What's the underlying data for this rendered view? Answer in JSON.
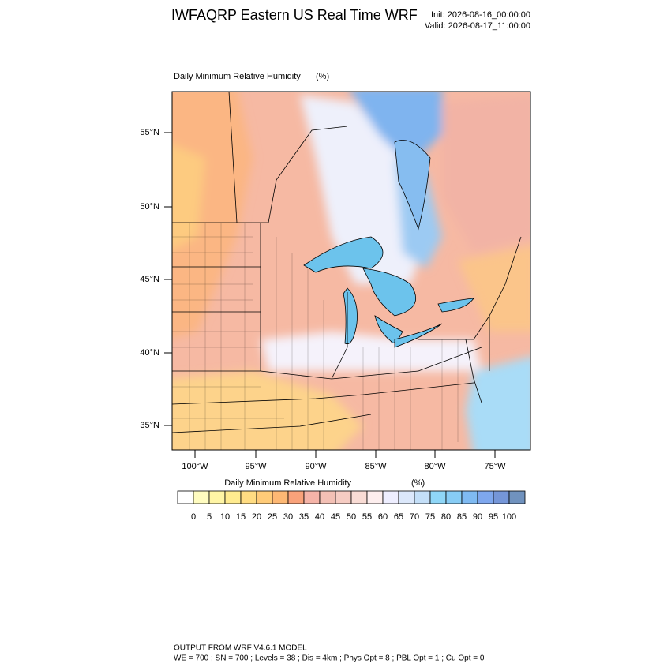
{
  "header": {
    "title": "IWFAQRP Eastern US Real Time WRF",
    "init": "Init: 2026-08-16_00:00:00",
    "valid": "Valid: 2026-08-17_11:00:00"
  },
  "map": {
    "label": "Daily Minimum Relative Humidity",
    "units": "(%)",
    "lat_labels": [
      "55°N",
      "50°N",
      "45°N",
      "40°N",
      "35°N"
    ],
    "lon_labels": [
      "100°W",
      "95°W",
      "90°W",
      "85°W",
      "80°W",
      "75°W"
    ]
  },
  "colorbar": {
    "title": "Daily Minimum Relative Humidity",
    "units": "(%)",
    "colors": [
      "#ffffff",
      "#fffcc0",
      "#fff5a5",
      "#ffeb8f",
      "#ffdc82",
      "#ffcb78",
      "#fdb874",
      "#f9a27a",
      "#f5b4a8",
      "#f3c0b5",
      "#f6ccc3",
      "#f9dcd5",
      "#fdeeee",
      "#eeeeff",
      "#dce8fb",
      "#c4dff8",
      "#8fd6f7",
      "#87ccf5",
      "#7fbaf2",
      "#7ea7ee",
      "#7596d8",
      "#7092be"
    ],
    "labels": [
      0,
      5,
      10,
      15,
      20,
      25,
      30,
      35,
      40,
      45,
      50,
      55,
      60,
      65,
      70,
      75,
      80,
      85,
      90,
      95,
      100
    ]
  },
  "footer": {
    "line1": "OUTPUT FROM WRF V4.6.1 MODEL",
    "line2": "WE = 700 ; SN = 700 ; Levels = 38 ; Dis = 4km ; Phys Opt = 8 ; PBL Opt = 1 ; Cu Opt = 0"
  }
}
